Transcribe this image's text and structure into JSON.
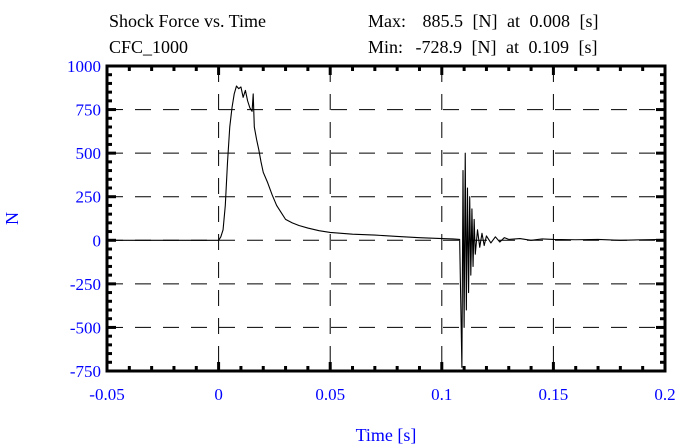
{
  "chart_data": {
    "type": "line",
    "title": "Shock Force vs. Time",
    "subtitle": "CFC_1000",
    "max_annotation": {
      "label": "Max:",
      "value": "885.5",
      "unit": "[N]",
      "at": "at",
      "time": "0.008",
      "time_unit": "[s]"
    },
    "min_annotation": {
      "label": "Min:",
      "value": "-728.9",
      "unit": "[N]",
      "at": "at",
      "time": "0.109",
      "time_unit": "[s]"
    },
    "xlabel": "Time [s]",
    "ylabel": "N",
    "xlim": [
      -0.05,
      0.2
    ],
    "ylim": [
      -750,
      1000
    ],
    "xticks": [
      -0.05,
      0,
      0.05,
      0.1,
      0.15,
      0.2
    ],
    "xtick_labels": [
      "-0.05",
      "0",
      "0.05",
      "0.1",
      "0.15",
      "0.2"
    ],
    "yticks": [
      -750,
      -500,
      -250,
      0,
      250,
      500,
      750,
      1000
    ],
    "ytick_labels": [
      "-750",
      "-500",
      "-250",
      "0",
      "250",
      "500",
      "750",
      "1000"
    ],
    "grid": true,
    "colors": {
      "axis_text": "#0000ff",
      "line": "#000000",
      "grid": "#000000"
    },
    "series": [
      {
        "x": [
          -0.05,
          -0.04,
          -0.03,
          -0.02,
          -0.01,
          0.0,
          0.001,
          0.002,
          0.003,
          0.004,
          0.005,
          0.006,
          0.007,
          0.008,
          0.009,
          0.01,
          0.011,
          0.012,
          0.013,
          0.014,
          0.015,
          0.0155,
          0.016,
          0.017,
          0.018,
          0.019,
          0.02,
          0.022,
          0.024,
          0.026,
          0.028,
          0.03,
          0.033,
          0.036,
          0.04,
          0.045,
          0.05,
          0.06,
          0.07,
          0.08,
          0.09,
          0.1,
          0.105,
          0.108,
          0.109,
          0.1095,
          0.11,
          0.1105,
          0.111,
          0.1115,
          0.112,
          0.1125,
          0.113,
          0.1135,
          0.114,
          0.1145,
          0.115,
          0.116,
          0.117,
          0.118,
          0.119,
          0.12,
          0.122,
          0.124,
          0.126,
          0.128,
          0.13,
          0.135,
          0.14,
          0.145,
          0.15,
          0.16,
          0.17,
          0.18,
          0.19,
          0.2
        ],
        "y": [
          0,
          0,
          0,
          0,
          0,
          0,
          20,
          60,
          200,
          450,
          650,
          760,
          840,
          885,
          870,
          880,
          820,
          860,
          800,
          760,
          740,
          840,
          650,
          580,
          520,
          450,
          390,
          330,
          260,
          200,
          160,
          120,
          100,
          85,
          70,
          55,
          45,
          35,
          30,
          22,
          15,
          10,
          8,
          5,
          -729,
          400,
          -500,
          500,
          -400,
          300,
          -300,
          250,
          -200,
          180,
          -150,
          120,
          -80,
          60,
          -40,
          40,
          -30,
          25,
          -15,
          20,
          -10,
          15,
          5,
          10,
          0,
          8,
          5,
          3,
          5,
          0,
          3,
          5
        ]
      }
    ]
  }
}
